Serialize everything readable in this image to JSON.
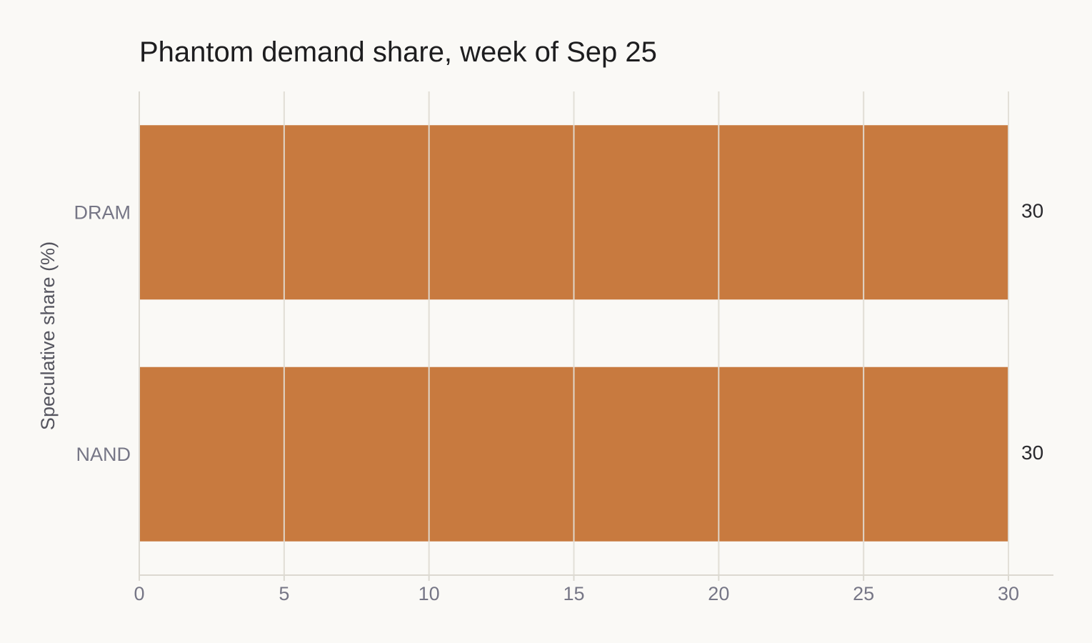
{
  "chart_data": {
    "type": "bar",
    "orientation": "horizontal",
    "title": "Phantom demand share, week of Sep 25",
    "ylabel": "Speculative share (%)",
    "xlabel": "",
    "categories": [
      "DRAM",
      "NAND"
    ],
    "values": [
      30,
      30
    ],
    "data_labels": [
      "30",
      "30"
    ],
    "xlim": [
      0,
      30
    ],
    "xticks": [
      0,
      5,
      10,
      15,
      20,
      25,
      30
    ],
    "grid": true,
    "legend": "none",
    "colors": {
      "bar": "#c87a3f",
      "grid": "#e3e0d8",
      "background": "#faf9f6",
      "axis": "#dcd9d1"
    }
  }
}
